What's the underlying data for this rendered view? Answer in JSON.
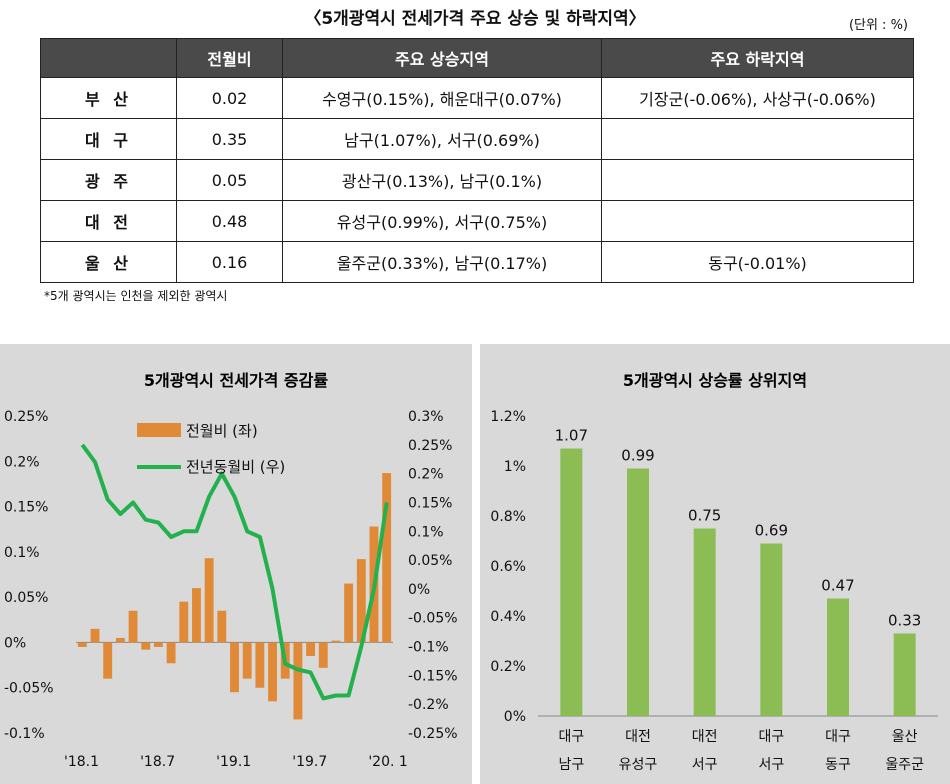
{
  "table_title": "〈5개광역시 전세가격 주요 상승 및 하락지역〉",
  "unit": "(단위 : %)",
  "table": {
    "headers": [
      "",
      "전월비",
      "주요 상승지역",
      "주요 하락지역"
    ],
    "rows": [
      {
        "region": "부 산",
        "mom": "0.02",
        "rise": "수영구(0.15%), 해운대구(0.07%)",
        "fall": "기장군(-0.06%), 사상구(-0.06%)"
      },
      {
        "region": "대 구",
        "mom": "0.35",
        "rise": "남구(1.07%), 서구(0.69%)",
        "fall": ""
      },
      {
        "region": "광 주",
        "mom": "0.05",
        "rise": "광산구(0.13%), 남구(0.1%)",
        "fall": ""
      },
      {
        "region": "대 전",
        "mom": "0.48",
        "rise": "유성구(0.99%), 서구(0.75%)",
        "fall": ""
      },
      {
        "region": "울 산",
        "mom": "0.16",
        "rise": "울주군(0.33%), 남구(0.17%)",
        "fall": "동구(-0.01%)"
      }
    ]
  },
  "note": "*5개 광역시는 인천을 제외한 광역시",
  "colors": {
    "bar_orange": "#e08a38",
    "line_green": "#22b14c",
    "bar_green": "#8cbd55",
    "panel_bg": "#d9d9d9",
    "header_bg": "#4a4a4a"
  },
  "chart_data": [
    {
      "type": "bar+line",
      "title": "5개광역시 전세가격 증감률",
      "x_ticks": [
        "'18.1",
        "'18.7",
        "'19.1",
        "'19.7",
        "'20. 1"
      ],
      "left_axis": {
        "ylim": [
          -0.1,
          0.25
        ],
        "ticks": [
          "0.25%",
          "0.2%",
          "0.15%",
          "0.1%",
          "0.05%",
          "0%",
          "-0.05%",
          "-0.1%"
        ],
        "tick_values": [
          0.25,
          0.2,
          0.15,
          0.1,
          0.05,
          0,
          -0.05,
          -0.1
        ]
      },
      "right_axis": {
        "ylim": [
          -0.25,
          0.3
        ],
        "ticks": [
          "0.3%",
          "0.25%",
          "0.2%",
          "0.15%",
          "0.1%",
          "0.05%",
          "0%",
          "-0.05%",
          "-0.1%",
          "-0.15%",
          "-0.2%",
          "-0.25%"
        ],
        "tick_values": [
          0.3,
          0.25,
          0.2,
          0.15,
          0.1,
          0.05,
          0,
          -0.05,
          -0.1,
          -0.15,
          -0.2,
          -0.25
        ]
      },
      "series": [
        {
          "name": "전월비 (좌)",
          "type": "bar",
          "axis": "left",
          "values": [
            -0.005,
            0.015,
            -0.04,
            0.005,
            0.035,
            -0.008,
            -0.005,
            -0.023,
            0.045,
            0.06,
            0.093,
            0.035,
            -0.055,
            -0.04,
            -0.05,
            -0.065,
            -0.04,
            -0.085,
            -0.015,
            -0.028,
            0.002,
            0.065,
            0.092,
            0.128,
            0.187
          ]
        },
        {
          "name": "전년동월비 (우)",
          "type": "line",
          "axis": "right",
          "values": [
            0.25,
            0.22,
            0.155,
            0.13,
            0.15,
            0.12,
            0.115,
            0.09,
            0.1,
            0.1,
            0.16,
            0.2,
            0.16,
            0.1,
            0.09,
            0.0,
            -0.13,
            -0.14,
            -0.145,
            -0.19,
            -0.185,
            -0.185,
            -0.1,
            0.0,
            0.15
          ]
        }
      ]
    },
    {
      "type": "bar",
      "title": "5개광역시 상승률 상위지역",
      "categories": [
        [
          "대구",
          "남구"
        ],
        [
          "대전",
          "유성구"
        ],
        [
          "대전",
          "서구"
        ],
        [
          "대구",
          "서구"
        ],
        [
          "대구",
          "동구"
        ],
        [
          "울산",
          "울주군"
        ]
      ],
      "values": [
        1.07,
        0.99,
        0.75,
        0.69,
        0.47,
        0.33
      ],
      "data_labels": [
        "1.07",
        "0.99",
        "0.75",
        "0.69",
        "0.47",
        "0.33"
      ],
      "ylim": [
        0,
        1.2
      ],
      "ticks": [
        "1.2%",
        "1%",
        "0.8%",
        "0.6%",
        "0.4%",
        "0.2%",
        "0%"
      ],
      "tick_values": [
        1.2,
        1.0,
        0.8,
        0.6,
        0.4,
        0.2,
        0
      ]
    }
  ]
}
